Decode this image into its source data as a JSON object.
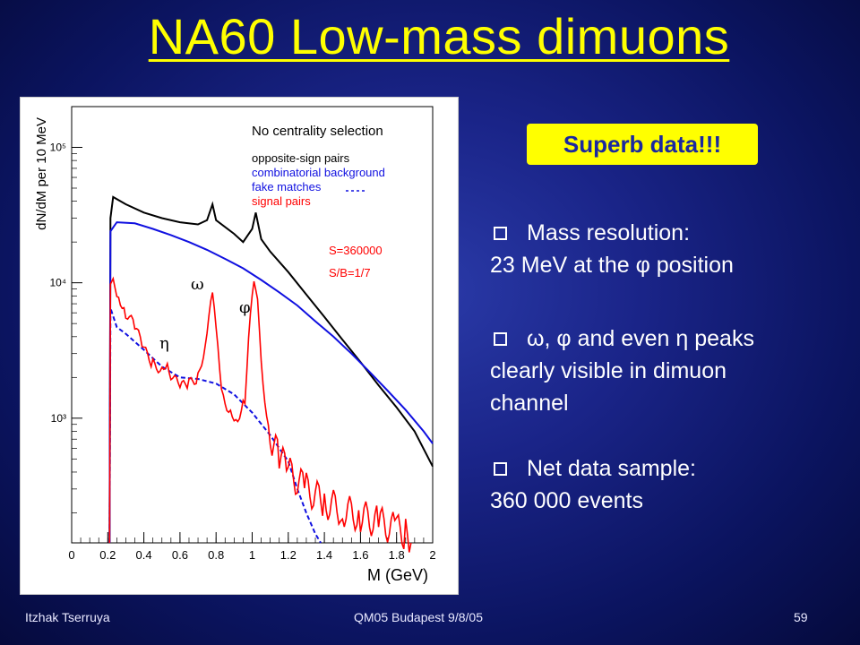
{
  "slide": {
    "title": "NA60 Low-mass dimuons",
    "callout": "Superb data!!!",
    "bullets": [
      {
        "line1": "Mass resolution:",
        "line2": "23 MeV at the φ position"
      },
      {
        "line1": "ω, φ and even η peaks",
        "line2": "clearly visible in  dimuon",
        "line3": "channel"
      },
      {
        "line1": "Net data sample:",
        "line2": "360 000 events"
      }
    ],
    "footer": {
      "author": "Itzhak Tserruya",
      "event": "QM05 Budapest 9/8/05",
      "page": "59"
    }
  },
  "chart_data": {
    "type": "line",
    "xlabel": "M (GeV)",
    "ylabel": "dN/dM per 10 MeV",
    "yscale": "log",
    "xlim": [
      0,
      2
    ],
    "ylim": [
      120,
      200000
    ],
    "x_ticks": [
      "0",
      "0.2",
      "0.4",
      "0.6",
      "0.8",
      "1",
      "1.2",
      "1.4",
      "1.6",
      "1.8",
      "2"
    ],
    "y_ticks": [
      "10³",
      "10⁴",
      "10⁵"
    ],
    "legend_title": "No centrality selection",
    "legend_placement": "top-right",
    "annotations": {
      "s": "S=360000",
      "sb": "S/B=1/7",
      "omega": "ω",
      "phi": "φ",
      "eta": "η"
    },
    "series": [
      {
        "name": "opposite-sign pairs",
        "color": "#000000",
        "style": "solid",
        "points": [
          [
            0.21,
            120
          ],
          [
            0.215,
            30000
          ],
          [
            0.23,
            43000
          ],
          [
            0.3,
            38000
          ],
          [
            0.4,
            33000
          ],
          [
            0.5,
            30000
          ],
          [
            0.6,
            28000
          ],
          [
            0.7,
            27000
          ],
          [
            0.75,
            29000
          ],
          [
            0.78,
            38000
          ],
          [
            0.8,
            29000
          ],
          [
            0.9,
            23000
          ],
          [
            0.95,
            20000
          ],
          [
            1.0,
            25000
          ],
          [
            1.02,
            33000
          ],
          [
            1.05,
            21000
          ],
          [
            1.1,
            17000
          ],
          [
            1.2,
            12000
          ],
          [
            1.3,
            8200
          ],
          [
            1.4,
            5600
          ],
          [
            1.5,
            3800
          ],
          [
            1.6,
            2600
          ],
          [
            1.7,
            1750
          ],
          [
            1.8,
            1200
          ],
          [
            1.9,
            800
          ],
          [
            2.0,
            440
          ]
        ]
      },
      {
        "name": "combinatorial background",
        "color": "#1010e0",
        "style": "solid",
        "points": [
          [
            0.21,
            120
          ],
          [
            0.215,
            24000
          ],
          [
            0.25,
            28000
          ],
          [
            0.35,
            27500
          ],
          [
            0.45,
            25000
          ],
          [
            0.55,
            22500
          ],
          [
            0.65,
            20000
          ],
          [
            0.75,
            17500
          ],
          [
            0.85,
            15000
          ],
          [
            0.95,
            12800
          ],
          [
            1.05,
            10500
          ],
          [
            1.15,
            8500
          ],
          [
            1.25,
            6800
          ],
          [
            1.35,
            5200
          ],
          [
            1.45,
            4000
          ],
          [
            1.55,
            3000
          ],
          [
            1.65,
            2200
          ],
          [
            1.75,
            1600
          ],
          [
            1.85,
            1150
          ],
          [
            1.95,
            800
          ],
          [
            2.0,
            650
          ]
        ]
      },
      {
        "name": "fake matches",
        "color": "#1010e0",
        "style": "dashed",
        "points": [
          [
            0.21,
            120
          ],
          [
            0.215,
            6500
          ],
          [
            0.25,
            4700
          ],
          [
            0.3,
            4200
          ],
          [
            0.4,
            3200
          ],
          [
            0.5,
            2400
          ],
          [
            0.6,
            2000
          ],
          [
            0.7,
            1950
          ],
          [
            0.8,
            1800
          ],
          [
            0.9,
            1500
          ],
          [
            1.0,
            1100
          ],
          [
            1.1,
            750
          ],
          [
            1.2,
            480
          ],
          [
            1.25,
            300
          ],
          [
            1.3,
            200
          ],
          [
            1.35,
            140
          ],
          [
            1.38,
            120
          ]
        ]
      },
      {
        "name": "signal pairs",
        "color": "#ff0000",
        "style": "solid",
        "points": [
          [
            0.21,
            120
          ],
          [
            0.215,
            9000
          ],
          [
            0.23,
            10000
          ],
          [
            0.26,
            8000
          ],
          [
            0.3,
            6000
          ],
          [
            0.35,
            4800
          ],
          [
            0.4,
            3200
          ],
          [
            0.45,
            2500
          ],
          [
            0.5,
            2300
          ],
          [
            0.53,
            2700
          ],
          [
            0.55,
            2100
          ],
          [
            0.6,
            1700
          ],
          [
            0.65,
            1800
          ],
          [
            0.7,
            2000
          ],
          [
            0.74,
            3500
          ],
          [
            0.77,
            8000
          ],
          [
            0.78,
            9000
          ],
          [
            0.8,
            4500
          ],
          [
            0.83,
            1500
          ],
          [
            0.88,
            1100
          ],
          [
            0.92,
            1000
          ],
          [
            0.96,
            1400
          ],
          [
            0.99,
            6000
          ],
          [
            1.01,
            9500
          ],
          [
            1.03,
            7000
          ],
          [
            1.06,
            1800
          ],
          [
            1.1,
            700
          ],
          [
            1.15,
            520
          ],
          [
            1.2,
            400
          ],
          [
            1.3,
            300
          ],
          [
            1.4,
            240
          ],
          [
            1.5,
            210
          ],
          [
            1.6,
            190
          ],
          [
            1.7,
            170
          ],
          [
            1.8,
            150
          ],
          [
            1.85,
            140
          ],
          [
            1.88,
            120
          ]
        ]
      }
    ]
  }
}
